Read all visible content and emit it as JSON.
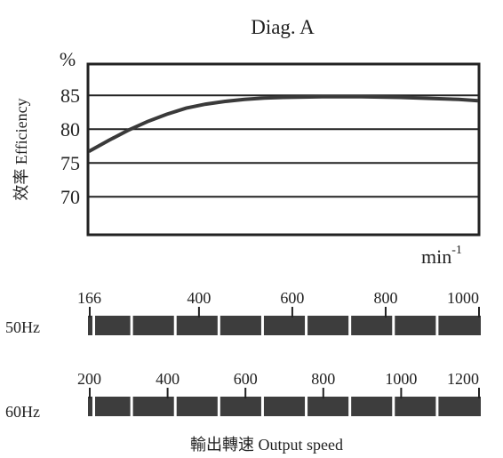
{
  "chart_data": {
    "type": "line",
    "title": "Diag. A",
    "ylabel": "效率 Efficiency",
    "yunit": "%",
    "xunit": "min",
    "xunit_exp": "-1",
    "xlabel": "輸出轉速 Output speed",
    "yticks": [
      "85",
      "80",
      "75",
      "70"
    ],
    "ylim": [
      64.5,
      89.5
    ],
    "xlim": [
      0,
      1
    ],
    "grid": true,
    "series": [
      {
        "x": [
          0,
          0.05,
          0.1,
          0.15,
          0.2,
          0.25,
          0.3,
          0.35,
          0.4,
          0.45,
          0.5,
          0.55,
          0.6,
          0.65,
          0.7,
          0.75,
          0.8,
          0.85,
          0.9,
          0.95,
          1.0
        ],
        "values": [
          76.7,
          78.3,
          79.8,
          81.1,
          82.2,
          83.1,
          83.7,
          84.1,
          84.4,
          84.6,
          84.7,
          84.75,
          84.8,
          84.8,
          84.8,
          84.75,
          84.7,
          84.6,
          84.5,
          84.4,
          84.2
        ]
      }
    ],
    "color": "#3a3a3a",
    "scales": [
      {
        "label": "50Hz",
        "ticks": [
          "166",
          "400",
          "600",
          "800",
          "1000"
        ],
        "tick_values": [
          166,
          400,
          600,
          800,
          1000
        ],
        "range": [
          166,
          1000
        ],
        "segments": 9
      },
      {
        "label": "60Hz",
        "ticks": [
          "200",
          "400",
          "600",
          "800",
          "1000",
          "1200"
        ],
        "tick_values": [
          200,
          400,
          600,
          800,
          1000,
          1200
        ],
        "range": [
          200,
          1200
        ],
        "segments": 9
      }
    ]
  }
}
